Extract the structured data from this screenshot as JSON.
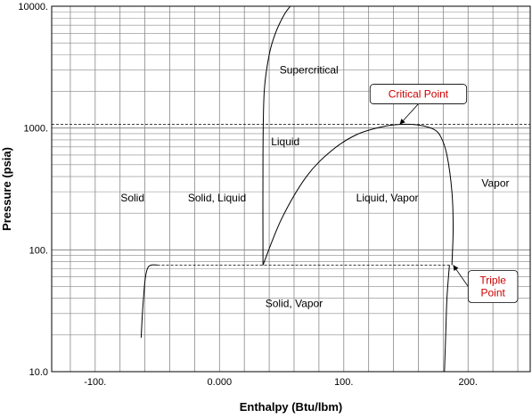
{
  "chart_data": {
    "type": "line",
    "xlabel": "Enthalpy (Btu/lbm)",
    "ylabel": "Pressure (psia)",
    "xlim": [
      -135,
      250
    ],
    "ylim": [
      10,
      10000
    ],
    "yscale": "log",
    "grid": true,
    "x_ticks": [
      {
        "value": -100,
        "label": "-100."
      },
      {
        "value": 0,
        "label": "0.000"
      },
      {
        "value": 100,
        "label": "100."
      },
      {
        "value": 200,
        "label": "200."
      }
    ],
    "y_ticks": [
      {
        "value": 10,
        "label": "10.0"
      },
      {
        "value": 100,
        "label": "100."
      },
      {
        "value": 1000,
        "label": "1000."
      },
      {
        "value": 10000,
        "label": "10000."
      }
    ],
    "reference_lines": [
      {
        "axis": "y",
        "value": 1070,
        "style": "dashed"
      },
      {
        "axis": "y",
        "value": 75,
        "style": "dashed",
        "x_range": [
          -50,
          185
        ]
      }
    ],
    "series": [
      {
        "values": [
          [
            -63,
            19
          ],
          [
            -62,
            30
          ],
          [
            -60,
            55
          ],
          [
            -58,
            70
          ],
          [
            -55,
            75
          ],
          [
            -50,
            75
          ]
        ]
      },
      {
        "values": [
          [
            35,
            75
          ],
          [
            35,
            600
          ],
          [
            36,
            2000
          ],
          [
            40,
            4000
          ],
          [
            45,
            6000
          ],
          [
            52,
            8500
          ],
          [
            57,
            10000
          ]
        ]
      },
      {
        "values": [
          [
            35,
            75
          ],
          [
            50,
            180
          ],
          [
            70,
            400
          ],
          [
            90,
            650
          ],
          [
            110,
            880
          ],
          [
            130,
            1020
          ],
          [
            145,
            1070
          ],
          [
            160,
            1060
          ],
          [
            172,
            980
          ],
          [
            178,
            850
          ],
          [
            183,
            600
          ],
          [
            187,
            300
          ],
          [
            188,
            150
          ],
          [
            187,
            75
          ]
        ]
      },
      {
        "values": [
          [
            185,
            75
          ],
          [
            183,
            40
          ],
          [
            182,
            20
          ],
          [
            181,
            10
          ]
        ]
      }
    ],
    "annotations": {
      "regions": [
        {
          "text": "Supercritical",
          "x": 72,
          "y": 2800
        },
        {
          "text": "Liquid",
          "x": 53,
          "y": 720
        },
        {
          "text": "Solid",
          "x": -70,
          "y": 250
        },
        {
          "text": "Solid, Liquid",
          "x": -2,
          "y": 250
        },
        {
          "text": "Liquid, Vapor",
          "x": 135,
          "y": 250
        },
        {
          "text": "Vapor",
          "x": 222,
          "y": 330
        },
        {
          "text": "Solid, Vapor",
          "x": 60,
          "y": 34
        }
      ],
      "callouts": [
        {
          "lines": [
            "Critical Point"
          ],
          "point_to": [
            145,
            1070
          ],
          "box_at": [
            160,
            1900
          ]
        },
        {
          "lines": [
            "Triple",
            "Point"
          ],
          "point_to": [
            188,
            75
          ],
          "box_at": [
            220,
            50
          ]
        }
      ]
    }
  }
}
